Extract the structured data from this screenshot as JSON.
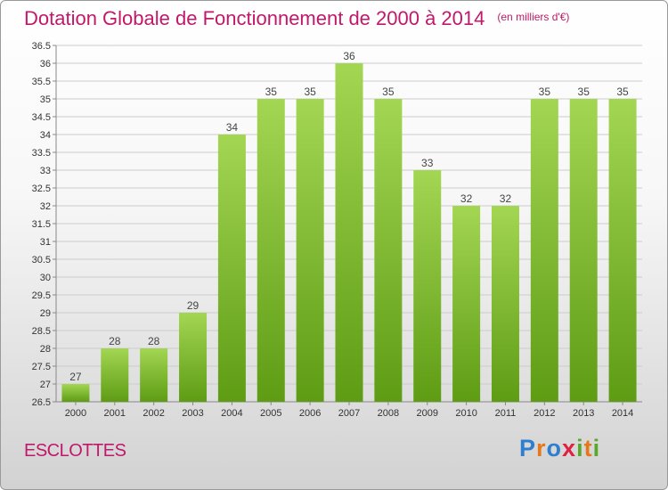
{
  "title": "Dotation Globale de Fonctionnement de 2000 à 2014",
  "unit_note": "(en milliers d'€)",
  "commune": "ESCLOTTES",
  "logo_text": "Proxiti",
  "colors": {
    "title": "#c0186a",
    "bar_light": "#a3d653",
    "bar_dark": "#5e9c14",
    "grid": "#cccccc"
  },
  "chart_data": {
    "type": "bar",
    "categories": [
      "2000",
      "2001",
      "2002",
      "2003",
      "2004",
      "2005",
      "2006",
      "2007",
      "2008",
      "2009",
      "2010",
      "2011",
      "2012",
      "2013",
      "2014"
    ],
    "values": [
      27,
      28,
      28,
      29,
      34,
      35,
      35,
      36,
      35,
      33,
      32,
      32,
      35,
      35,
      35
    ],
    "data_labels": [
      "27",
      "28",
      "28",
      "29",
      "34",
      "35",
      "35",
      "36",
      "35",
      "33",
      "32",
      "32",
      "35",
      "35",
      "35"
    ],
    "title": "Dotation Globale de Fonctionnement de 2000 à 2014",
    "xlabel": "",
    "ylabel": "",
    "ylim": [
      26.5,
      36.5
    ],
    "yticks": [
      "26.5",
      "27",
      "27.5",
      "28",
      "28.5",
      "29",
      "29.5",
      "30",
      "30.5",
      "31",
      "31.5",
      "32",
      "32.5",
      "33",
      "33.5",
      "34",
      "34.5",
      "35",
      "35.5",
      "36",
      "36.5"
    ],
    "grid": true,
    "legend": "none"
  }
}
